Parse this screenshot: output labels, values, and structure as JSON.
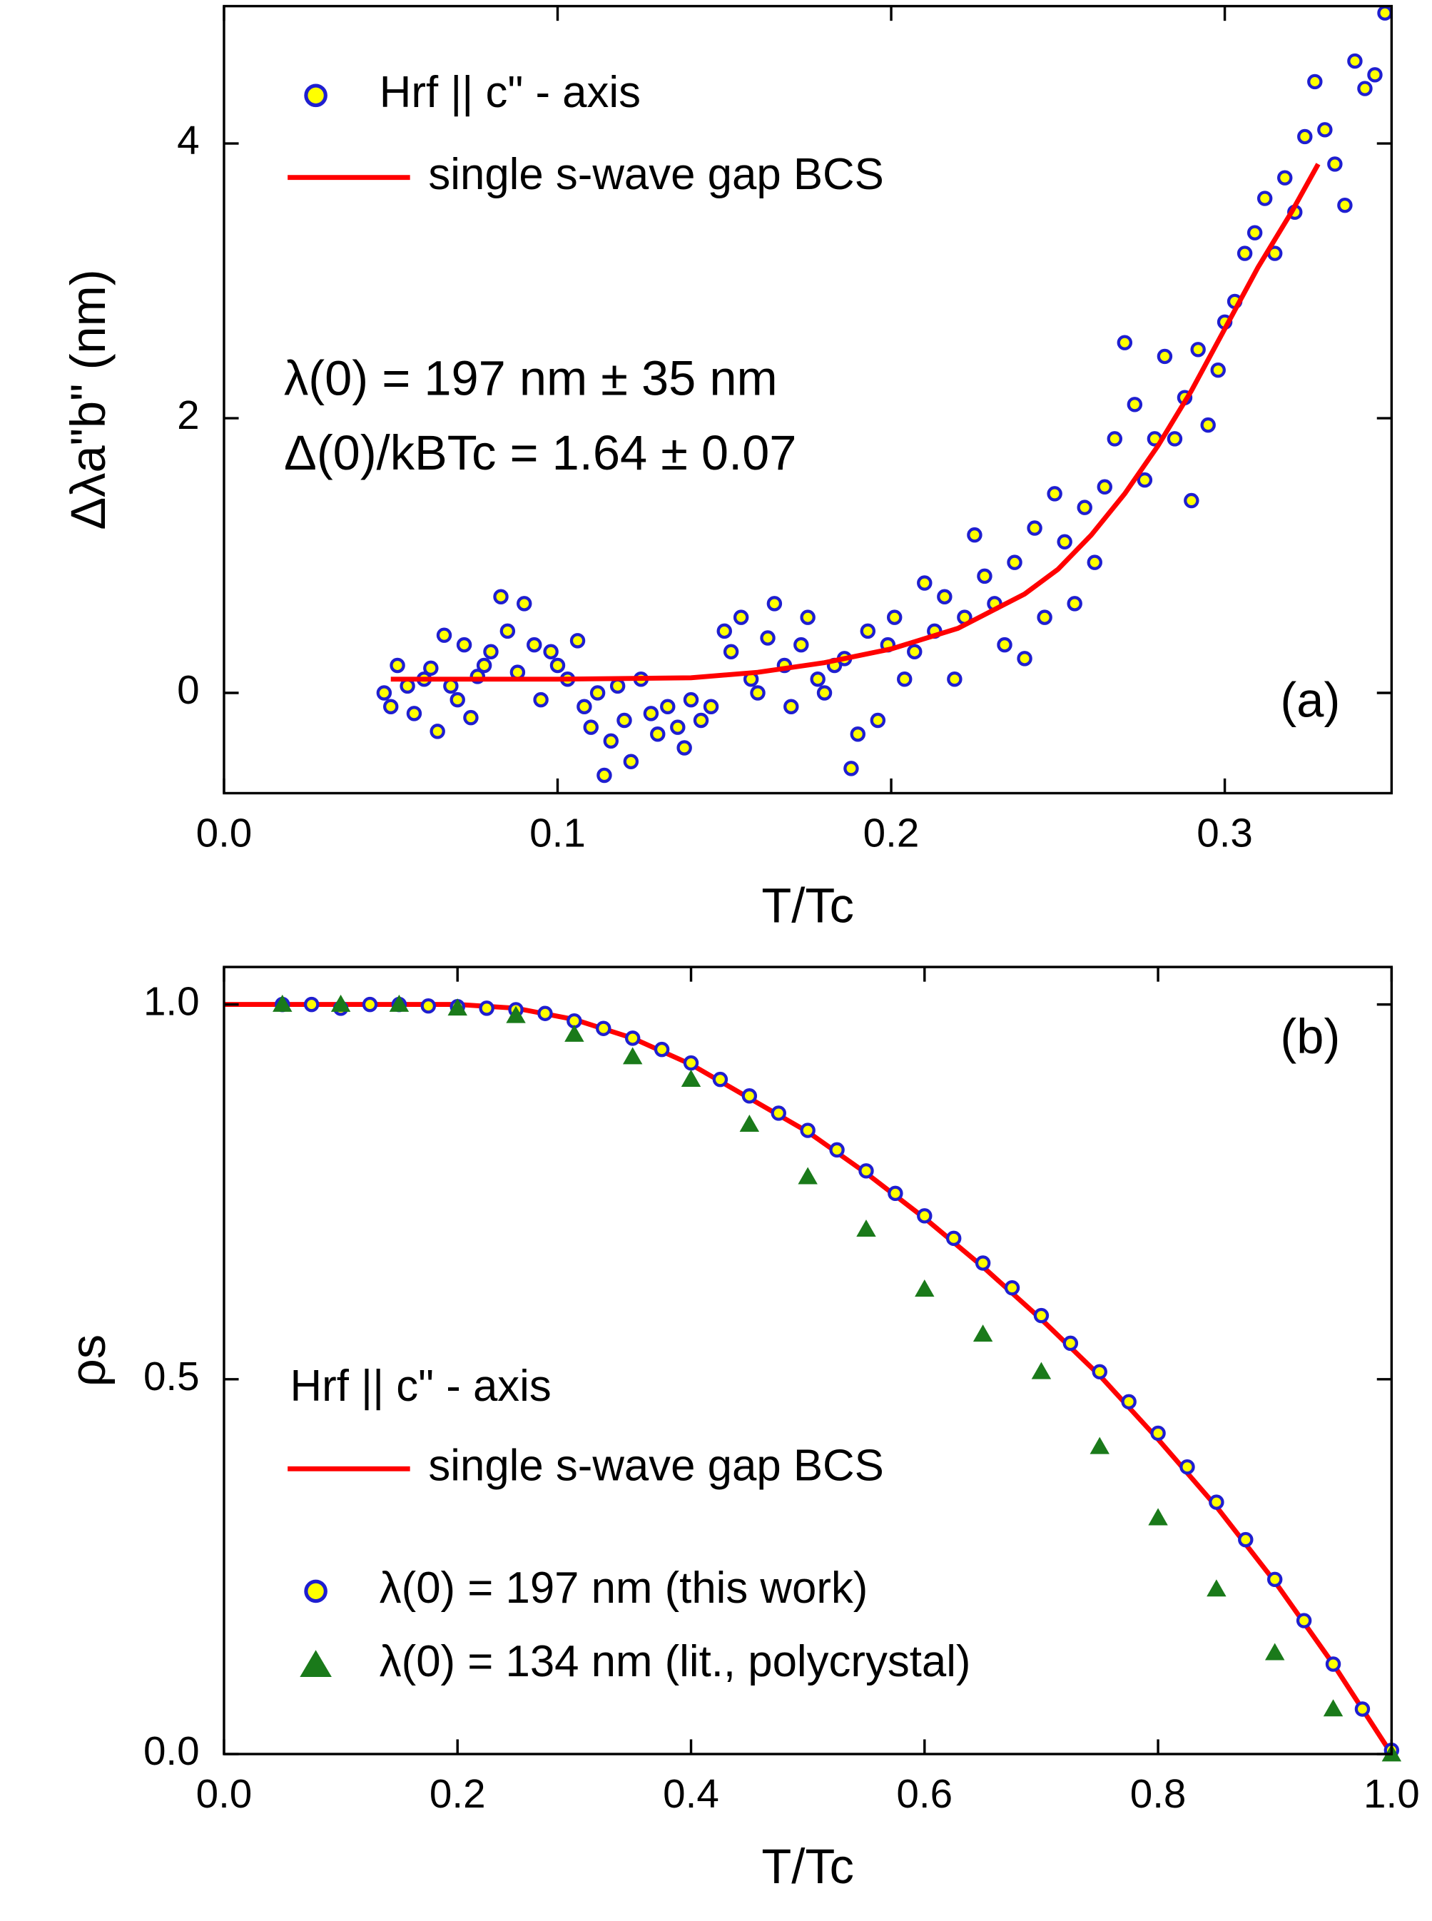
{
  "chart_data": [
    {
      "type": "scatter",
      "xlabel": "T/Tc",
      "ylabel": "Δλa\"b\" (nm)",
      "xlim": [
        0,
        0.35
      ],
      "ylim": [
        -0.73,
        5
      ],
      "xticks": [
        {
          "value": 0,
          "label": "0.0"
        },
        0.1,
        0.2,
        0.3
      ],
      "yticks": [
        0,
        2,
        4
      ],
      "legend": "upper left",
      "annotations": [
        "λ(0) = 197 nm ± 35 nm",
        "Δ(0)/kBTc = 1.64 ± 0.07",
        "(a)"
      ],
      "series": [
        {
          "name": "Hrf || c\" - axis",
          "type": "scatter",
          "color": "#ffff00",
          "edgecolor": "#1f1fd0",
          "x": [
            0.048,
            0.05,
            0.052,
            0.055,
            0.057,
            0.06,
            0.062,
            0.064,
            0.066,
            0.068,
            0.07,
            0.072,
            0.074,
            0.076,
            0.078,
            0.08,
            0.083,
            0.085,
            0.088,
            0.09,
            0.093,
            0.095,
            0.098,
            0.1,
            0.103,
            0.106,
            0.108,
            0.11,
            0.112,
            0.114,
            0.116,
            0.118,
            0.12,
            0.122,
            0.125,
            0.128,
            0.13,
            0.133,
            0.136,
            0.138,
            0.14,
            0.143,
            0.146,
            0.15,
            0.152,
            0.155,
            0.158,
            0.16,
            0.163,
            0.165,
            0.168,
            0.17,
            0.173,
            0.175,
            0.178,
            0.18,
            0.183,
            0.186,
            0.188,
            0.19,
            0.193,
            0.196,
            0.199,
            0.201,
            0.204,
            0.207,
            0.21,
            0.213,
            0.216,
            0.219,
            0.222,
            0.225,
            0.228,
            0.231,
            0.234,
            0.237,
            0.24,
            0.243,
            0.246,
            0.249,
            0.252,
            0.255,
            0.258,
            0.261,
            0.264,
            0.267,
            0.27,
            0.273,
            0.276,
            0.279,
            0.282,
            0.285,
            0.288,
            0.29,
            0.292,
            0.295,
            0.298,
            0.3,
            0.303,
            0.306,
            0.309,
            0.312,
            0.315,
            0.318,
            0.321,
            0.324,
            0.327,
            0.33,
            0.333,
            0.336,
            0.339,
            0.342,
            0.345,
            0.348
          ],
          "values": [
            0.0,
            -0.1,
            0.2,
            0.05,
            -0.15,
            0.1,
            0.18,
            -0.28,
            0.42,
            0.05,
            -0.05,
            0.35,
            -0.18,
            0.12,
            0.2,
            0.3,
            0.7,
            0.45,
            0.15,
            0.65,
            0.35,
            -0.05,
            0.3,
            0.2,
            0.1,
            0.38,
            -0.1,
            -0.25,
            0.0,
            -0.6,
            -0.35,
            0.05,
            -0.2,
            -0.5,
            0.1,
            -0.15,
            -0.3,
            -0.1,
            -0.25,
            -0.4,
            -0.05,
            -0.2,
            -0.1,
            0.45,
            0.3,
            0.55,
            0.1,
            0.0,
            0.4,
            0.65,
            0.2,
            -0.1,
            0.35,
            0.55,
            0.1,
            0.0,
            0.2,
            0.25,
            -0.55,
            -0.3,
            0.45,
            -0.2,
            0.35,
            0.55,
            0.1,
            0.3,
            0.8,
            0.45,
            0.7,
            0.1,
            0.55,
            1.15,
            0.85,
            0.65,
            0.35,
            0.95,
            0.25,
            1.2,
            0.55,
            1.45,
            1.1,
            0.65,
            1.35,
            0.95,
            1.5,
            1.85,
            2.55,
            2.1,
            1.55,
            1.85,
            2.45,
            1.85,
            2.15,
            1.4,
            2.5,
            1.95,
            2.35,
            2.7,
            2.85,
            3.2,
            3.35,
            3.6,
            3.2,
            3.75,
            3.5,
            4.05,
            4.45,
            4.1,
            3.85,
            3.55,
            4.6,
            4.4,
            4.5,
            4.95
          ]
        },
        {
          "name": "single s-wave gap BCS",
          "type": "line",
          "color": "#ff0000",
          "x": [
            0.05,
            0.1,
            0.14,
            0.16,
            0.18,
            0.2,
            0.22,
            0.24,
            0.25,
            0.26,
            0.27,
            0.28,
            0.29,
            0.3,
            0.31,
            0.32,
            0.328
          ],
          "values": [
            0.1,
            0.1,
            0.11,
            0.15,
            0.22,
            0.32,
            0.47,
            0.72,
            0.9,
            1.15,
            1.45,
            1.8,
            2.2,
            2.65,
            3.1,
            3.5,
            3.85
          ]
        }
      ]
    },
    {
      "type": "scatter",
      "xlabel": "T/Tc",
      "ylabel": "ρs",
      "xlim": [
        0,
        1
      ],
      "ylim": [
        0,
        1.05
      ],
      "xticks": [
        {
          "value": 0,
          "label": "0.0"
        },
        0.2,
        0.4,
        0.6,
        0.8,
        {
          "value": 1,
          "label": "1.0"
        }
      ],
      "yticks": [
        {
          "value": 0,
          "label": "0.0"
        },
        0.5,
        {
          "value": 1,
          "label": "1.0"
        }
      ],
      "legend": "lower left",
      "legend_title": "Hrf || c\" - axis",
      "annotations": [
        "(b)"
      ],
      "series": [
        {
          "name": "single s-wave gap BCS",
          "type": "line",
          "color": "#ff0000",
          "x": [
            0,
            0.1,
            0.2,
            0.25,
            0.3,
            0.35,
            0.4,
            0.45,
            0.5,
            0.55,
            0.6,
            0.65,
            0.7,
            0.75,
            0.8,
            0.85,
            0.9,
            0.95,
            1.0
          ],
          "values": [
            1,
            1,
            1,
            0.995,
            0.98,
            0.955,
            0.92,
            0.875,
            0.83,
            0.775,
            0.715,
            0.65,
            0.58,
            0.505,
            0.42,
            0.33,
            0.23,
            0.12,
            0
          ]
        },
        {
          "name": "λ(0) = 197 nm (this work)",
          "type": "scatter",
          "color": "#ffff00",
          "edgecolor": "#1f1fd0",
          "x": [
            0.05,
            0.075,
            0.1,
            0.125,
            0.15,
            0.175,
            0.2,
            0.225,
            0.25,
            0.275,
            0.3,
            0.325,
            0.35,
            0.375,
            0.4,
            0.425,
            0.45,
            0.475,
            0.5,
            0.525,
            0.55,
            0.575,
            0.6,
            0.625,
            0.65,
            0.675,
            0.7,
            0.725,
            0.75,
            0.775,
            0.8,
            0.825,
            0.85,
            0.875,
            0.9,
            0.925,
            0.95,
            0.975,
            1.0
          ],
          "values": [
            1,
            1,
            0.995,
            1,
            1,
            0.998,
            0.997,
            0.995,
            0.993,
            0.988,
            0.978,
            0.968,
            0.955,
            0.94,
            0.922,
            0.9,
            0.878,
            0.855,
            0.832,
            0.806,
            0.778,
            0.748,
            0.718,
            0.688,
            0.655,
            0.622,
            0.585,
            0.548,
            0.51,
            0.47,
            0.428,
            0.383,
            0.336,
            0.286,
            0.233,
            0.178,
            0.12,
            0.06,
            0.005
          ]
        },
        {
          "name": "λ(0) = 134 nm (lit., polycrystal)",
          "type": "triangle",
          "color": "#1a7a1a",
          "x": [
            0.05,
            0.1,
            0.15,
            0.2,
            0.25,
            0.3,
            0.35,
            0.4,
            0.45,
            0.5,
            0.55,
            0.6,
            0.65,
            0.7,
            0.75,
            0.8,
            0.85,
            0.9,
            0.95,
            1.0
          ],
          "values": [
            1,
            1,
            1,
            0.995,
            0.985,
            0.96,
            0.93,
            0.9,
            0.84,
            0.77,
            0.7,
            0.62,
            0.56,
            0.51,
            0.41,
            0.315,
            0.22,
            0.135,
            0.06,
            0
          ]
        }
      ]
    }
  ]
}
